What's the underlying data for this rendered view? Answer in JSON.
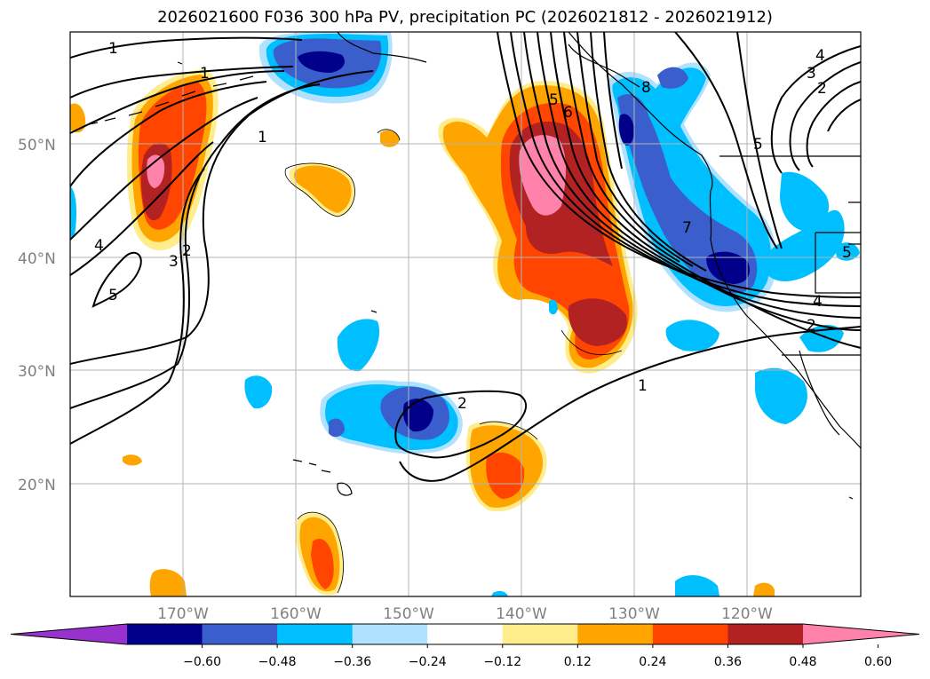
{
  "title": "2026021600 F036 300 hPa PV, precipitation PC (2026021812 - 2026021912)",
  "latitude_labels": [
    "50°N",
    "40°N",
    "30°N",
    "20°N"
  ],
  "longitude_labels": [
    "170°W",
    "160°W",
    "150°W",
    "140°W",
    "130°W",
    "120°W"
  ],
  "colorbar": {
    "tick_labels": [
      "−0.60",
      "−0.48",
      "−0.36",
      "−0.24",
      "−0.12",
      "0.12",
      "0.24",
      "0.36",
      "0.48",
      "0.60"
    ],
    "colors": [
      "#9932cc",
      "#00008b",
      "#3a5fcd",
      "#00bfff",
      "#b0e2ff",
      "#ffffff",
      "#ffec8b",
      "#ffa500",
      "#ff4500",
      "#b22222",
      "#ff82ab"
    ]
  },
  "contour_labels": [
    "1",
    "1",
    "1",
    "1",
    "2",
    "2",
    "2",
    "2",
    "3",
    "3",
    "4",
    "4",
    "4",
    "5",
    "5",
    "5",
    "5",
    "6",
    "7",
    "8"
  ],
  "colors": {
    "grid": "#b3b3b3",
    "coast": "#000000",
    "contour": "#000000"
  }
}
